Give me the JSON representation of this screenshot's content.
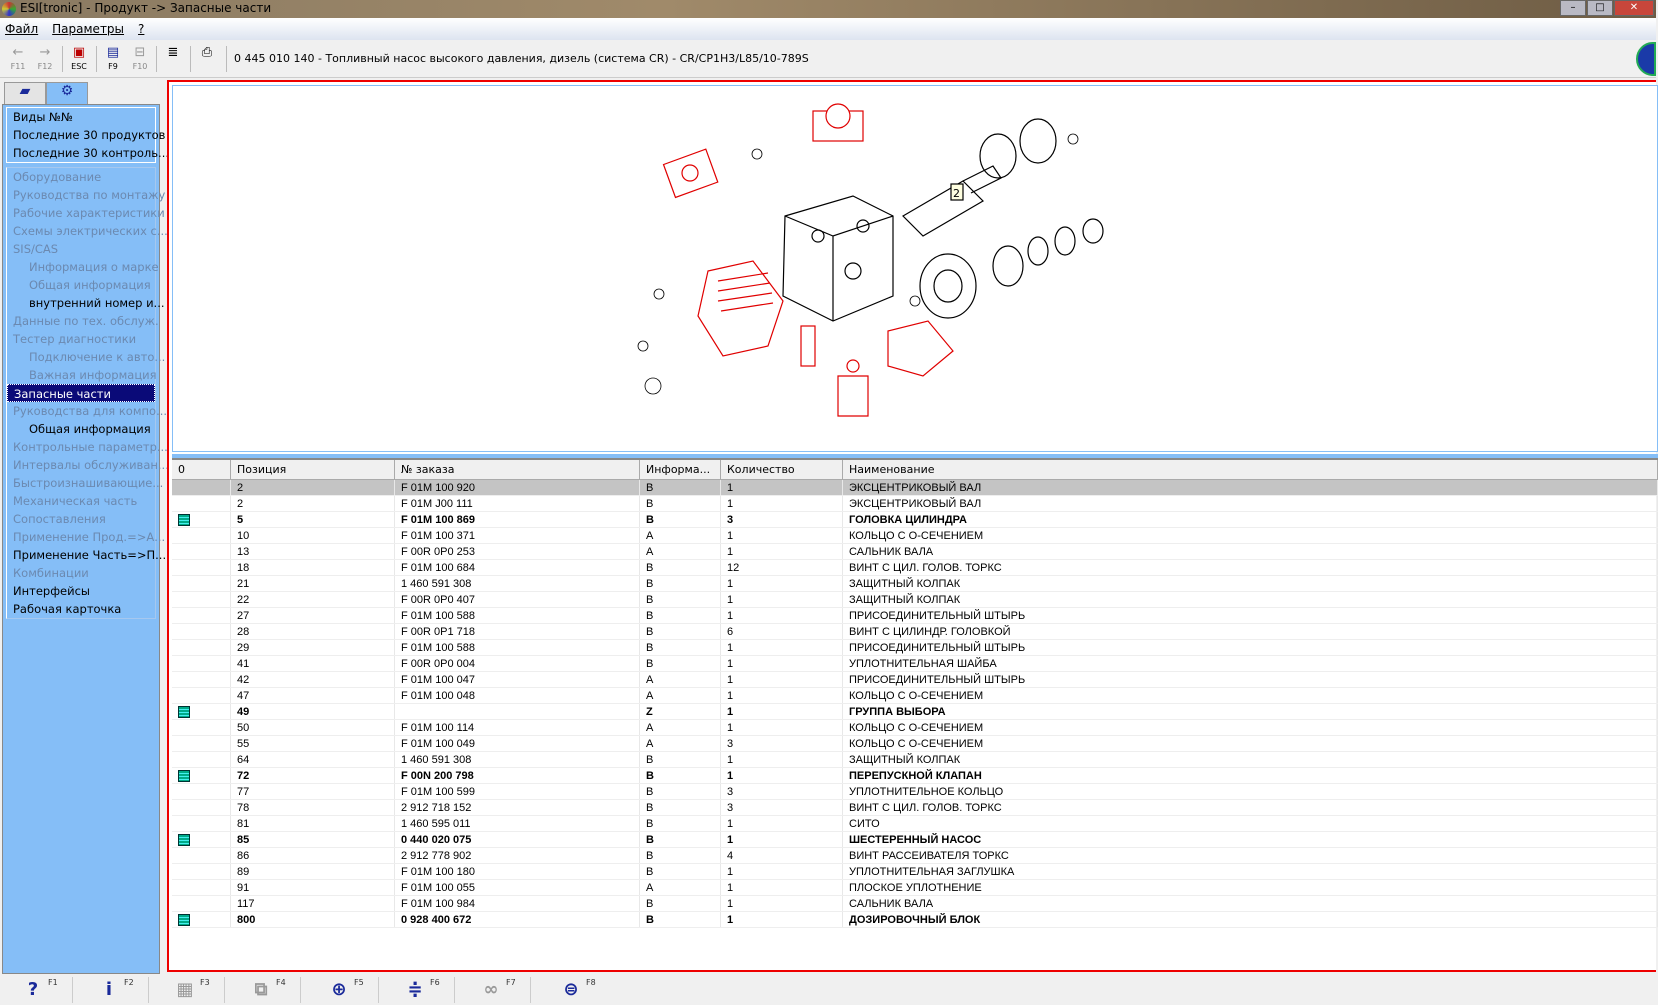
{
  "window": {
    "title": "ESI[tronic] - Продукт -> Запасные части"
  },
  "menu": [
    "Файл",
    "Параметры",
    "?"
  ],
  "toolbar": {
    "buttons": [
      {
        "icon": "arrow-left-icon",
        "key": "F11",
        "enabled": false
      },
      {
        "icon": "arrow-right-icon",
        "key": "F12",
        "enabled": false
      },
      {
        "icon": "escape-icon",
        "key": "ESC",
        "enabled": true
      },
      {
        "icon": "list-icon",
        "key": "F9",
        "enabled": true
      },
      {
        "icon": "tree-icon",
        "key": "F10",
        "enabled": false
      },
      {
        "icon": "document-icon",
        "key": "",
        "enabled": true
      },
      {
        "icon": "printer-icon",
        "key": "",
        "enabled": true
      }
    ],
    "product_title": "0 445 010 140 - Топливный насос высокого давления, дизель (система CR) - CR/CP1H3/L85/10-789S"
  },
  "sidebar": {
    "tabs": [
      {
        "icon": "car-icon",
        "active": false
      },
      {
        "icon": "engine-part-icon",
        "active": true
      }
    ],
    "top_items": [
      "Виды №№",
      "Последние 30 продуктов",
      "Последние 30 контроль..."
    ],
    "items": [
      {
        "label": "Оборудование",
        "state": "disabled",
        "indent": false
      },
      {
        "label": "Руководства по монтажу",
        "state": "disabled",
        "indent": false
      },
      {
        "label": "Рабочие характеристики",
        "state": "disabled",
        "indent": false
      },
      {
        "label": "Схемы электрических с...",
        "state": "disabled",
        "indent": false
      },
      {
        "label": "SIS/CAS",
        "state": "disabled",
        "indent": false
      },
      {
        "label": "Информация о марке",
        "state": "disabled",
        "indent": true
      },
      {
        "label": "Общая информация",
        "state": "disabled",
        "indent": true
      },
      {
        "label": "внутренний номер и...",
        "state": "enabled",
        "indent": true
      },
      {
        "label": "Данные по тех. обслуж.",
        "state": "disabled",
        "indent": false
      },
      {
        "label": "Тестер диагностики",
        "state": "disabled",
        "indent": false
      },
      {
        "label": "Подключение к авто...",
        "state": "disabled",
        "indent": true
      },
      {
        "label": "Важная информация",
        "state": "disabled",
        "indent": true
      },
      {
        "label": "Запасные части",
        "state": "selected",
        "indent": false
      },
      {
        "label": "Руководства для компо...",
        "state": "disabled",
        "indent": false
      },
      {
        "label": "Общая информация",
        "state": "enabled",
        "indent": true
      },
      {
        "label": "Контрольные параметр...",
        "state": "disabled",
        "indent": false
      },
      {
        "label": "Интервалы обслуживан...",
        "state": "disabled",
        "indent": false
      },
      {
        "label": "Быстроизнашивающие...",
        "state": "disabled",
        "indent": false
      },
      {
        "label": "Механическая часть",
        "state": "disabled",
        "indent": false
      },
      {
        "label": "Сопоставления",
        "state": "disabled",
        "indent": false
      },
      {
        "label": "Применение Прод.=>А...",
        "state": "disabled",
        "indent": false
      },
      {
        "label": "Применение Часть=>П...",
        "state": "enabled",
        "indent": false
      },
      {
        "label": "Комбинации",
        "state": "disabled",
        "indent": false
      },
      {
        "label": "Интерфейсы",
        "state": "enabled",
        "indent": false
      },
      {
        "label": "Рабочая карточка",
        "state": "enabled",
        "indent": false
      }
    ]
  },
  "table": {
    "columns": [
      "0",
      "Позиция",
      "№ заказа",
      "Информа...",
      "Количество",
      "Наименование"
    ],
    "rows": [
      {
        "doc": false,
        "bold": false,
        "selected": true,
        "pos": "2",
        "order": "F 01M 100 920",
        "info": "B",
        "qty": "1",
        "name": "ЭКСЦЕНТРИКОВЫЙ ВАЛ"
      },
      {
        "doc": false,
        "bold": false,
        "pos": "2",
        "order": "F 01M J00 111",
        "info": "B",
        "qty": "1",
        "name": "ЭКСЦЕНТРИКОВЫЙ ВАЛ"
      },
      {
        "doc": true,
        "bold": true,
        "pos": "5",
        "order": "F 01M 100 869",
        "info": "B",
        "qty": "3",
        "name": "ГОЛОВКА ЦИЛИНДРА"
      },
      {
        "doc": false,
        "bold": false,
        "pos": "10",
        "order": "F 01M 100 371",
        "info": "A",
        "qty": "1",
        "name": "КОЛЬЦО С О-СЕЧЕНИЕМ"
      },
      {
        "doc": false,
        "bold": false,
        "pos": "13",
        "order": "F 00R 0P0 253",
        "info": "A",
        "qty": "1",
        "name": "САЛЬНИК ВАЛА"
      },
      {
        "doc": false,
        "bold": false,
        "pos": "18",
        "order": "F 01M 100 684",
        "info": "B",
        "qty": "12",
        "name": "ВИНТ С ЦИЛ. ГОЛОВ. ТОРКС"
      },
      {
        "doc": false,
        "bold": false,
        "pos": "21",
        "order": "1 460 591 308",
        "info": "B",
        "qty": "1",
        "name": "ЗАЩИТНЫЙ КОЛПАК"
      },
      {
        "doc": false,
        "bold": false,
        "pos": "22",
        "order": "F 00R 0P0 407",
        "info": "B",
        "qty": "1",
        "name": "ЗАЩИТНЫЙ КОЛПАК"
      },
      {
        "doc": false,
        "bold": false,
        "pos": "27",
        "order": "F 01M 100 588",
        "info": "B",
        "qty": "1",
        "name": "ПРИСОЕДИНИТЕЛЬНЫЙ ШТЫРЬ"
      },
      {
        "doc": false,
        "bold": false,
        "pos": "28",
        "order": "F 00R 0P1 718",
        "info": "B",
        "qty": "6",
        "name": "ВИНТ С ЦИЛИНДР. ГОЛОВКОЙ"
      },
      {
        "doc": false,
        "bold": false,
        "pos": "29",
        "order": "F 01M 100 588",
        "info": "B",
        "qty": "1",
        "name": "ПРИСОЕДИНИТЕЛЬНЫЙ ШТЫРЬ"
      },
      {
        "doc": false,
        "bold": false,
        "pos": "41",
        "order": "F 00R 0P0 004",
        "info": "B",
        "qty": "1",
        "name": "УПЛОТНИТЕЛЬНАЯ ШАЙБА"
      },
      {
        "doc": false,
        "bold": false,
        "pos": "42",
        "order": "F 01M 100 047",
        "info": "A",
        "qty": "1",
        "name": "ПРИСОЕДИНИТЕЛЬНЫЙ ШТЫРЬ"
      },
      {
        "doc": false,
        "bold": false,
        "pos": "47",
        "order": "F 01M 100 048",
        "info": "A",
        "qty": "1",
        "name": "КОЛЬЦО С О-СЕЧЕНИЕМ"
      },
      {
        "doc": true,
        "bold": true,
        "pos": "49",
        "order": "",
        "info": "Z",
        "qty": "1",
        "name": "ГРУППА ВЫБОРА"
      },
      {
        "doc": false,
        "bold": false,
        "pos": "50",
        "order": "F 01M 100 114",
        "info": "A",
        "qty": "1",
        "name": "КОЛЬЦО С О-СЕЧЕНИЕМ"
      },
      {
        "doc": false,
        "bold": false,
        "pos": "55",
        "order": "F 01M 100 049",
        "info": "A",
        "qty": "3",
        "name": "КОЛЬЦО С О-СЕЧЕНИЕМ"
      },
      {
        "doc": false,
        "bold": false,
        "pos": "64",
        "order": "1 460 591 308",
        "info": "B",
        "qty": "1",
        "name": "ЗАЩИТНЫЙ КОЛПАК"
      },
      {
        "doc": true,
        "bold": true,
        "pos": "72",
        "order": "F 00N 200 798",
        "info": "B",
        "qty": "1",
        "name": "ПЕРЕПУСКНОЙ КЛАПАН"
      },
      {
        "doc": false,
        "bold": false,
        "pos": "77",
        "order": "F 01M 100 599",
        "info": "B",
        "qty": "3",
        "name": "УПЛОТНИТЕЛЬНОЕ КОЛЬЦО"
      },
      {
        "doc": false,
        "bold": false,
        "pos": "78",
        "order": "2 912 718 152",
        "info": "B",
        "qty": "3",
        "name": "ВИНТ С ЦИЛ. ГОЛОВ. ТОРКС"
      },
      {
        "doc": false,
        "bold": false,
        "pos": "81",
        "order": "1 460 595 011",
        "info": "B",
        "qty": "1",
        "name": "СИТО"
      },
      {
        "doc": true,
        "bold": true,
        "pos": "85",
        "order": "0 440 020 075",
        "info": "B",
        "qty": "1",
        "name": "ШЕСТЕРЕННЫЙ НАСОС"
      },
      {
        "doc": false,
        "bold": false,
        "pos": "86",
        "order": "2 912 778 902",
        "info": "B",
        "qty": "4",
        "name": "ВИНТ РАССЕИВАТЕЛЯ ТОРКС"
      },
      {
        "doc": false,
        "bold": false,
        "pos": "89",
        "order": "F 01M 100 180",
        "info": "B",
        "qty": "1",
        "name": "УПЛОТНИТЕЛЬНАЯ ЗАГЛУШКА"
      },
      {
        "doc": false,
        "bold": false,
        "pos": "91",
        "order": "F 01M 100 055",
        "info": "A",
        "qty": "1",
        "name": "ПЛОСКОЕ УПЛОТНЕНИЕ"
      },
      {
        "doc": false,
        "bold": false,
        "pos": "117",
        "order": "F 01M 100 984",
        "info": "B",
        "qty": "1",
        "name": "САЛЬНИК ВАЛА"
      },
      {
        "doc": true,
        "bold": true,
        "pos": "800",
        "order": "0 928 400 672",
        "info": "B",
        "qty": "1",
        "name": "ДОЗИРОВОЧНЫЙ БЛОК"
      }
    ]
  },
  "drawing": {
    "callout": "2",
    "highlight_color": "#e00000"
  },
  "bottombar": [
    {
      "icon": "help-icon",
      "glyph": "?",
      "key": "F1",
      "enabled": true
    },
    {
      "icon": "info-icon",
      "glyph": "i",
      "key": "F2",
      "enabled": true
    },
    {
      "icon": "calculator-icon",
      "glyph": "▦",
      "key": "F3",
      "enabled": false
    },
    {
      "icon": "copy-icon",
      "glyph": "⧉",
      "key": "F4",
      "enabled": false
    },
    {
      "icon": "zoom-icon",
      "glyph": "⊕",
      "key": "F5",
      "enabled": true
    },
    {
      "icon": "split-icon",
      "glyph": "≑",
      "key": "F6",
      "enabled": true
    },
    {
      "icon": "link-icon",
      "glyph": "∞",
      "key": "F7",
      "enabled": false
    },
    {
      "icon": "bosch-icon",
      "glyph": "⊜",
      "key": "F8",
      "enabled": true
    }
  ]
}
